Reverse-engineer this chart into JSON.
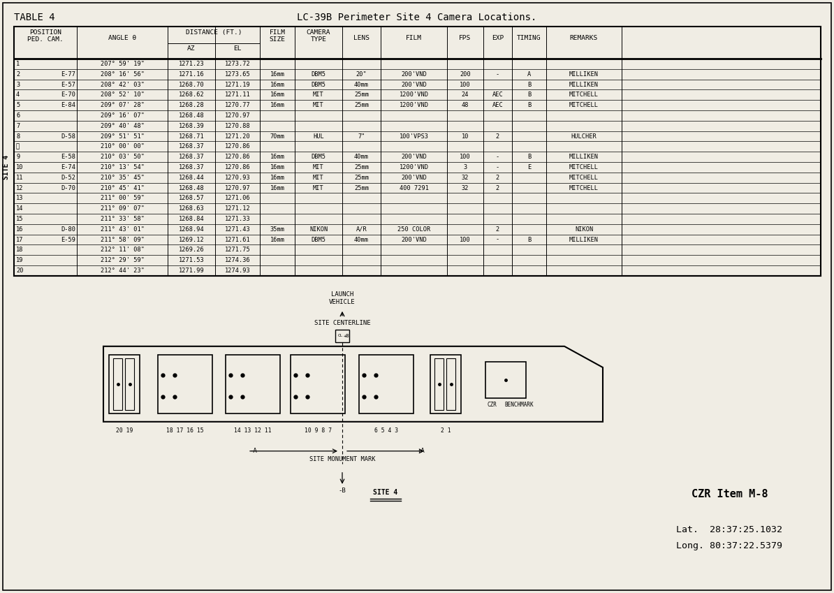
{
  "title_left": "TABLE 4",
  "title_center": "LC-39B Perimeter Site 4 Camera Locations.",
  "bg_color": "#f0ede4",
  "rows": [
    [
      "1",
      "",
      "207° 59' 19\"",
      "1271.23",
      "1273.72",
      "",
      "",
      "",
      "",
      "",
      "",
      "",
      ""
    ],
    [
      "2",
      "E-77",
      "208° 16' 56\"",
      "1271.16",
      "1273.65",
      "16mm",
      "DBM5",
      "20\"",
      "200'VND",
      "200",
      "-",
      "A",
      "MILLIKEN"
    ],
    [
      "3",
      "E-57",
      "208° 42' 03\"",
      "1268.70",
      "1271.19",
      "16mm",
      "DBM5",
      "40mm",
      "200'VND",
      "100",
      "",
      "B",
      "MILLIKEN"
    ],
    [
      "4",
      "E-70",
      "208° 52' 10\"",
      "1268.62",
      "1271.11",
      "16mm",
      "MIT",
      "25mm",
      "1200'VND",
      "24",
      "AEC",
      "B",
      "MITCHELL"
    ],
    [
      "5",
      "E-84",
      "209° 07' 28\"",
      "1268.28",
      "1270.77",
      "16mm",
      "MIT",
      "25mm",
      "1200'VND",
      "48",
      "AEC",
      "B",
      "MITCHELL"
    ],
    [
      "6",
      "",
      "209° 16' 07\"",
      "1268.48",
      "1270.97",
      "",
      "",
      "",
      "",
      "",
      "",
      "",
      ""
    ],
    [
      "7",
      "",
      "209° 40' 48\"",
      "1268.39",
      "1270.88",
      "",
      "",
      "",
      "",
      "",
      "",
      "",
      ""
    ],
    [
      "8",
      "D-58",
      "209° 51' 51\"",
      "1268.71",
      "1271.20",
      "70mm",
      "HUL",
      "7\"",
      "100'VPS3",
      "10",
      "2",
      "",
      "HULCHER"
    ],
    [
      "␼",
      "",
      "210° 00' 00\"",
      "1268.37",
      "1270.86",
      "",
      "",
      "",
      "",
      "",
      "",
      "",
      ""
    ],
    [
      "9",
      "E-58",
      "210° 03' 50\"",
      "1268.37",
      "1270.86",
      "16mm",
      "DBM5",
      "40mm",
      "200'VND",
      "100",
      "-",
      "B",
      "MILLIKEN"
    ],
    [
      "10",
      "E-74",
      "210° 13' 54\"",
      "1268.37",
      "1270.86",
      "16mm",
      "MIT",
      "25mm",
      "1200'VND",
      "3",
      "-",
      "E",
      "MITCHELL"
    ],
    [
      "11",
      "D-52",
      "210° 35' 45\"",
      "1268.44",
      "1270.93",
      "16mm",
      "MIT",
      "25mm",
      "200'VND",
      "32",
      "2",
      "",
      "MITCHELL"
    ],
    [
      "12",
      "D-70",
      "210° 45' 41\"",
      "1268.48",
      "1270.97",
      "16mm",
      "MIT",
      "25mm",
      "400 7291",
      "32",
      "2",
      "",
      "MITCHELL"
    ],
    [
      "13",
      "",
      "211° 00' 59\"",
      "1268.57",
      "1271.06",
      "",
      "",
      "",
      "",
      "",
      "",
      "",
      ""
    ],
    [
      "14",
      "",
      "211° 09' 07\"",
      "1268.63",
      "1271.12",
      "",
      "",
      "",
      "",
      "",
      "",
      "",
      ""
    ],
    [
      "15",
      "",
      "211° 33' 58\"",
      "1268.84",
      "1271.33",
      "",
      "",
      "",
      "",
      "",
      "",
      "",
      ""
    ],
    [
      "16",
      "D-80",
      "211° 43' 01\"",
      "1268.94",
      "1271.43",
      "35mm",
      "NIKON",
      "A/R",
      "250 COLOR",
      "",
      "2",
      "",
      "NIKON"
    ],
    [
      "17",
      "E-59",
      "211° 58' 09\"",
      "1269.12",
      "1271.61",
      "16mm",
      "DBM5",
      "40mm",
      "200'VND",
      "100",
      "-",
      "B",
      "MILLIKEN"
    ],
    [
      "18",
      "",
      "212° 11' 08\"",
      "1269.26",
      "1271.75",
      "",
      "",
      "",
      "",
      "",
      "",
      "",
      ""
    ],
    [
      "19",
      "",
      "212° 29' 59\"",
      "1271.53",
      "1274.36",
      "",
      "",
      "",
      "",
      "",
      "",
      "",
      ""
    ],
    [
      "20",
      "",
      "212° 44' 23\"",
      "1271.99",
      "1274.93",
      "",
      "",
      "",
      "",
      "",
      "",
      "",
      ""
    ]
  ],
  "czr_item": "CZR Item M-8",
  "lat": "Lat.  28:37:25.1032",
  "lon": "Long. 80:37:22.5379"
}
